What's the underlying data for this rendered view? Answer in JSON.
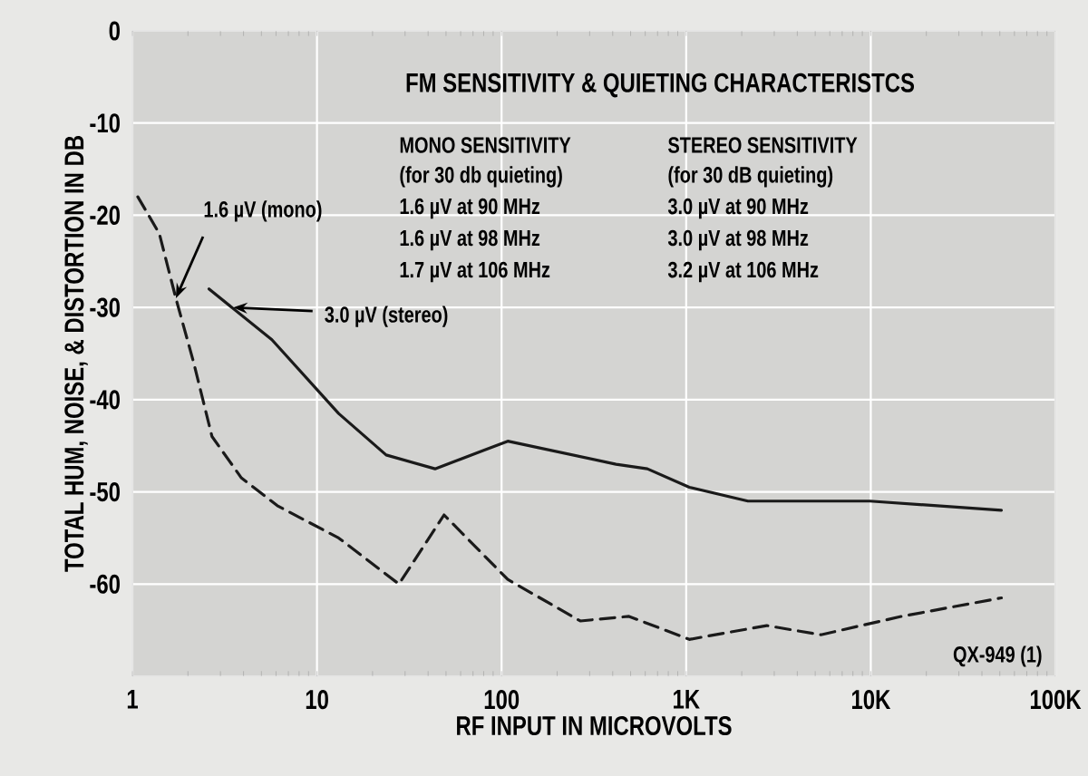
{
  "chart_data": {
    "type": "line",
    "title": "FM SENSITIVITY & QUIETING CHARACTERISTCS",
    "xlabel": "RF INPUT IN MICROVOLTS",
    "ylabel": "TOTAL HUM, NOISE, & DISTORTION IN DB",
    "log": "x",
    "grid": true,
    "xlim": [
      1,
      100000
    ],
    "ylim": [
      -70,
      0
    ],
    "xticks": [
      1,
      10,
      100,
      {
        "value": 1000,
        "label": "1K"
      },
      {
        "value": 10000,
        "label": "10K"
      },
      {
        "value": 100000,
        "label": "100K"
      }
    ],
    "yticks": [
      0,
      -10,
      -20,
      -30,
      -40,
      -50,
      -60,
      {
        "value": -70,
        "label": null
      }
    ],
    "series": [
      {
        "color": "#1a1a1a",
        "line_style": "dashed",
        "x": [
          1.07,
          1.4,
          1.72,
          2.15,
          2.7,
          3.9,
          6.1,
          13.1,
          27.8,
          48.8,
          108,
          267,
          490,
          1040,
          2730,
          5370,
          14700,
          51000
        ],
        "values": [
          -18,
          -22,
          -29,
          -36,
          -44,
          -48.5,
          -51.5,
          -55,
          -60,
          -52.5,
          -59.5,
          -64,
          -63.5,
          -66,
          -64.5,
          -65.5,
          -63.5,
          -61.5
        ]
      },
      {
        "color": "#1a1a1a",
        "line_style": "solid",
        "x": [
          2.6,
          5.7,
          13.1,
          23.7,
          43.6,
          80,
          108,
          417,
          616,
          1040,
          2160,
          9900,
          51000
        ],
        "values": [
          -28,
          -33.5,
          -41.5,
          -46,
          -47.5,
          -45.5,
          -44.5,
          -47,
          -47.5,
          -49.5,
          -51,
          -51,
          -52
        ]
      }
    ],
    "annotations": [
      {
        "text": "1.6 µV (mono)",
        "x": 1.72,
        "y": -29
      },
      {
        "text": "3.0 µV (stereo)",
        "x": 3.5,
        "y": -30
      },
      "MONO SENSITIVITY",
      "(for 30 db quieting)",
      "1.6 µV at 90 MHz",
      "1.6 µV at 98 MHz",
      "1.7 µV at 106 MHz",
      "STEREO SENSITIVITY",
      "(for 30 dB quieting)",
      "3.0 µV at 90 MHz",
      "3.0 µV at 98 MHz",
      "3.2 µV at 106 MHz",
      "QX-949 (1)"
    ]
  }
}
